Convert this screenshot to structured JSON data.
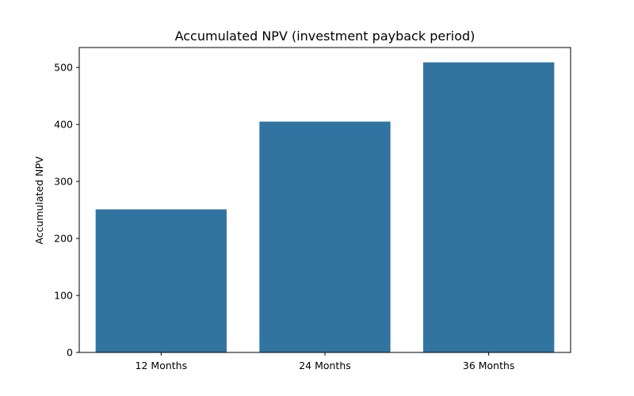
{
  "chart_data": {
    "type": "bar",
    "title": "Accumulated NPV (investment payback period)",
    "xlabel": "",
    "ylabel": "Accumulated NPV",
    "categories": [
      "12 Months",
      "24 Months",
      "36 Months"
    ],
    "values": [
      251,
      405,
      509
    ],
    "ylim": [
      0,
      535
    ],
    "yticks": [
      0,
      100,
      200,
      300,
      400,
      500
    ],
    "grid": false,
    "legend": "none",
    "bar_color": "#3274a1"
  }
}
